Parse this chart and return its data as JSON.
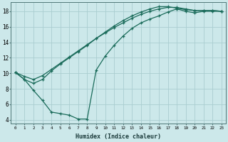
{
  "xlabel": "Humidex (Indice chaleur)",
  "bg_color": "#cce8ea",
  "grid_color": "#aacdd0",
  "line_color": "#1a6b5a",
  "xlim": [
    -0.5,
    23.5
  ],
  "ylim": [
    3.5,
    19.2
  ],
  "xtick_labels": [
    "0",
    "1",
    "2",
    "3",
    "4",
    "5",
    "6",
    "7",
    "8",
    "9",
    "10",
    "11",
    "12",
    "13",
    "14",
    "15",
    "16",
    "17",
    "18",
    "19",
    "20",
    "21",
    "22",
    "23"
  ],
  "ytick_values": [
    4,
    6,
    8,
    10,
    12,
    14,
    16,
    18
  ],
  "line1_x": [
    0,
    1,
    2,
    3,
    4,
    5,
    6,
    7,
    8,
    9,
    10,
    11,
    12,
    13,
    14,
    15,
    16,
    17,
    18,
    19,
    20,
    21,
    22,
    23
  ],
  "line1_y": [
    10.1,
    9.2,
    8.7,
    9.2,
    10.3,
    11.2,
    12.0,
    12.8,
    13.6,
    14.5,
    15.3,
    16.1,
    16.8,
    17.4,
    17.9,
    18.3,
    18.6,
    18.6,
    18.4,
    18.2,
    18.1,
    18.1,
    18.1,
    18.0
  ],
  "line2_x": [
    0,
    1,
    2,
    3,
    4,
    5,
    6,
    7,
    8,
    9,
    10,
    11,
    12,
    13,
    14,
    15,
    16,
    17,
    18,
    19,
    20,
    21,
    22,
    23
  ],
  "line2_y": [
    10.1,
    9.6,
    9.2,
    9.7,
    10.5,
    11.3,
    12.1,
    12.9,
    13.7,
    14.5,
    15.2,
    15.9,
    16.5,
    17.1,
    17.6,
    18.0,
    18.3,
    18.5,
    18.5,
    18.3,
    18.1,
    18.1,
    18.1,
    18.0
  ],
  "line3_x": [
    0,
    1,
    2,
    3,
    4,
    5,
    6,
    7,
    8,
    9,
    10,
    11,
    12,
    13,
    14,
    15,
    16,
    17,
    18,
    19,
    20,
    21,
    22,
    23
  ],
  "line3_y": [
    10.1,
    9.2,
    7.8,
    6.5,
    5.0,
    4.8,
    4.6,
    4.1,
    4.1,
    10.4,
    12.2,
    13.6,
    14.8,
    15.8,
    16.5,
    17.0,
    17.4,
    17.9,
    18.3,
    18.0,
    17.8,
    18.0,
    18.0,
    18.0
  ]
}
